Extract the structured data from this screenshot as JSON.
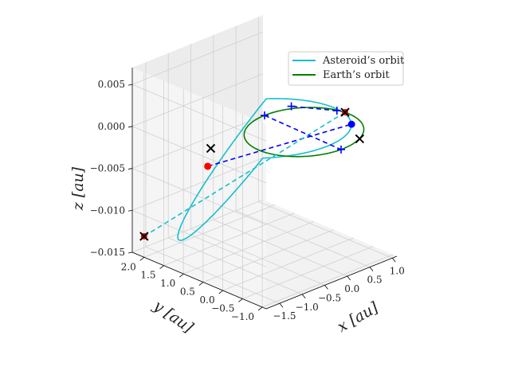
{
  "chart_data": {
    "type": "line",
    "projection": "3d",
    "xlabel": "x [au]",
    "ylabel": "y [au]",
    "zlabel": "z [au]",
    "xlim": [
      -1.8,
      1.1
    ],
    "ylim": [
      -1.1,
      2.3
    ],
    "zlim": [
      -0.015,
      0.007
    ],
    "x_ticks": [
      "−1.5",
      "−1.0",
      "−0.5",
      "0.0",
      "0.5",
      "1.0"
    ],
    "y_ticks": [
      "−1.0",
      "−0.5",
      "0.0",
      "0.5",
      "1.0",
      "1.5",
      "2.0"
    ],
    "z_ticks": [
      "−0.015",
      "−0.010",
      "−0.005",
      "0.000",
      "0.005"
    ],
    "x_tick_values": [
      -1.5,
      -1.0,
      -0.5,
      0.0,
      0.5,
      1.0
    ],
    "y_tick_values": [
      -1.0,
      -0.5,
      0.0,
      0.5,
      1.0,
      1.5,
      2.0
    ],
    "z_tick_values": [
      -0.015,
      -0.01,
      -0.005,
      0.0,
      0.005
    ],
    "grid": true,
    "legend": "top-right",
    "series": [
      {
        "name": "Asteroid’s orbit",
        "color": "#17becf",
        "style": "solid",
        "a": 1.45,
        "e": 0.55,
        "center": [
          -0.35,
          0.6
        ],
        "z_amplitude": -0.0125
      },
      {
        "name": "Earth’s orbit",
        "color": "#008000",
        "style": "solid",
        "a": 1.0,
        "e": 0.0,
        "center": [
          0.0,
          0.0
        ],
        "z_amplitude": 0.0
      }
    ],
    "markers": [
      {
        "kind": "dot",
        "color": "#ff0000",
        "x": -1.0,
        "y": 1.3,
        "z": -0.0045
      },
      {
        "kind": "dot",
        "color": "#0000ff",
        "x": 0.75,
        "y": -0.35,
        "z": 0.0
      },
      {
        "kind": "cross",
        "color": "#000000",
        "x": -1.5,
        "y": 0.65,
        "z": 0.0
      },
      {
        "kind": "cross",
        "color": "#000000",
        "x": 0.45,
        "y": -0.9,
        "z": 0.0
      },
      {
        "kind": "cross-red",
        "color": "#000000",
        "x": -1.8,
        "y": 2.0,
        "z": -0.0125
      },
      {
        "kind": "cross-red",
        "color": "#000000",
        "x": 1.0,
        "y": 0.1,
        "z": 0.0
      },
      {
        "kind": "plus",
        "color": "#0000ff",
        "x": 0.0,
        "y": 1.0,
        "z": 0.0
      },
      {
        "kind": "plus",
        "color": "#0000ff",
        "x": -0.05,
        "y": -1.0,
        "z": 0.0
      },
      {
        "kind": "plus",
        "color": "#0000ff",
        "x": 0.95,
        "y": 0.25,
        "z": 0.0
      },
      {
        "kind": "plus",
        "color": "#0000ff",
        "x": 0.55,
        "y": 0.95,
        "z": 0.0
      }
    ],
    "dashed_lines": [
      {
        "color": "#0000ff",
        "from": [
          -1.0,
          1.3,
          -0.0045
        ],
        "to": [
          0.75,
          -0.35,
          0.0
        ]
      },
      {
        "color": "#17becf",
        "from": [
          -1.8,
          2.0,
          -0.0125
        ],
        "to": [
          1.0,
          0.1,
          0.0
        ]
      },
      {
        "color": "#0000ff",
        "from": [
          0.0,
          1.0,
          0.0
        ],
        "to": [
          -0.05,
          -1.0,
          0.0
        ]
      },
      {
        "color": "#0000ff",
        "from": [
          0.95,
          0.25,
          0.0
        ],
        "to": [
          0.55,
          0.95,
          0.0
        ]
      }
    ]
  }
}
